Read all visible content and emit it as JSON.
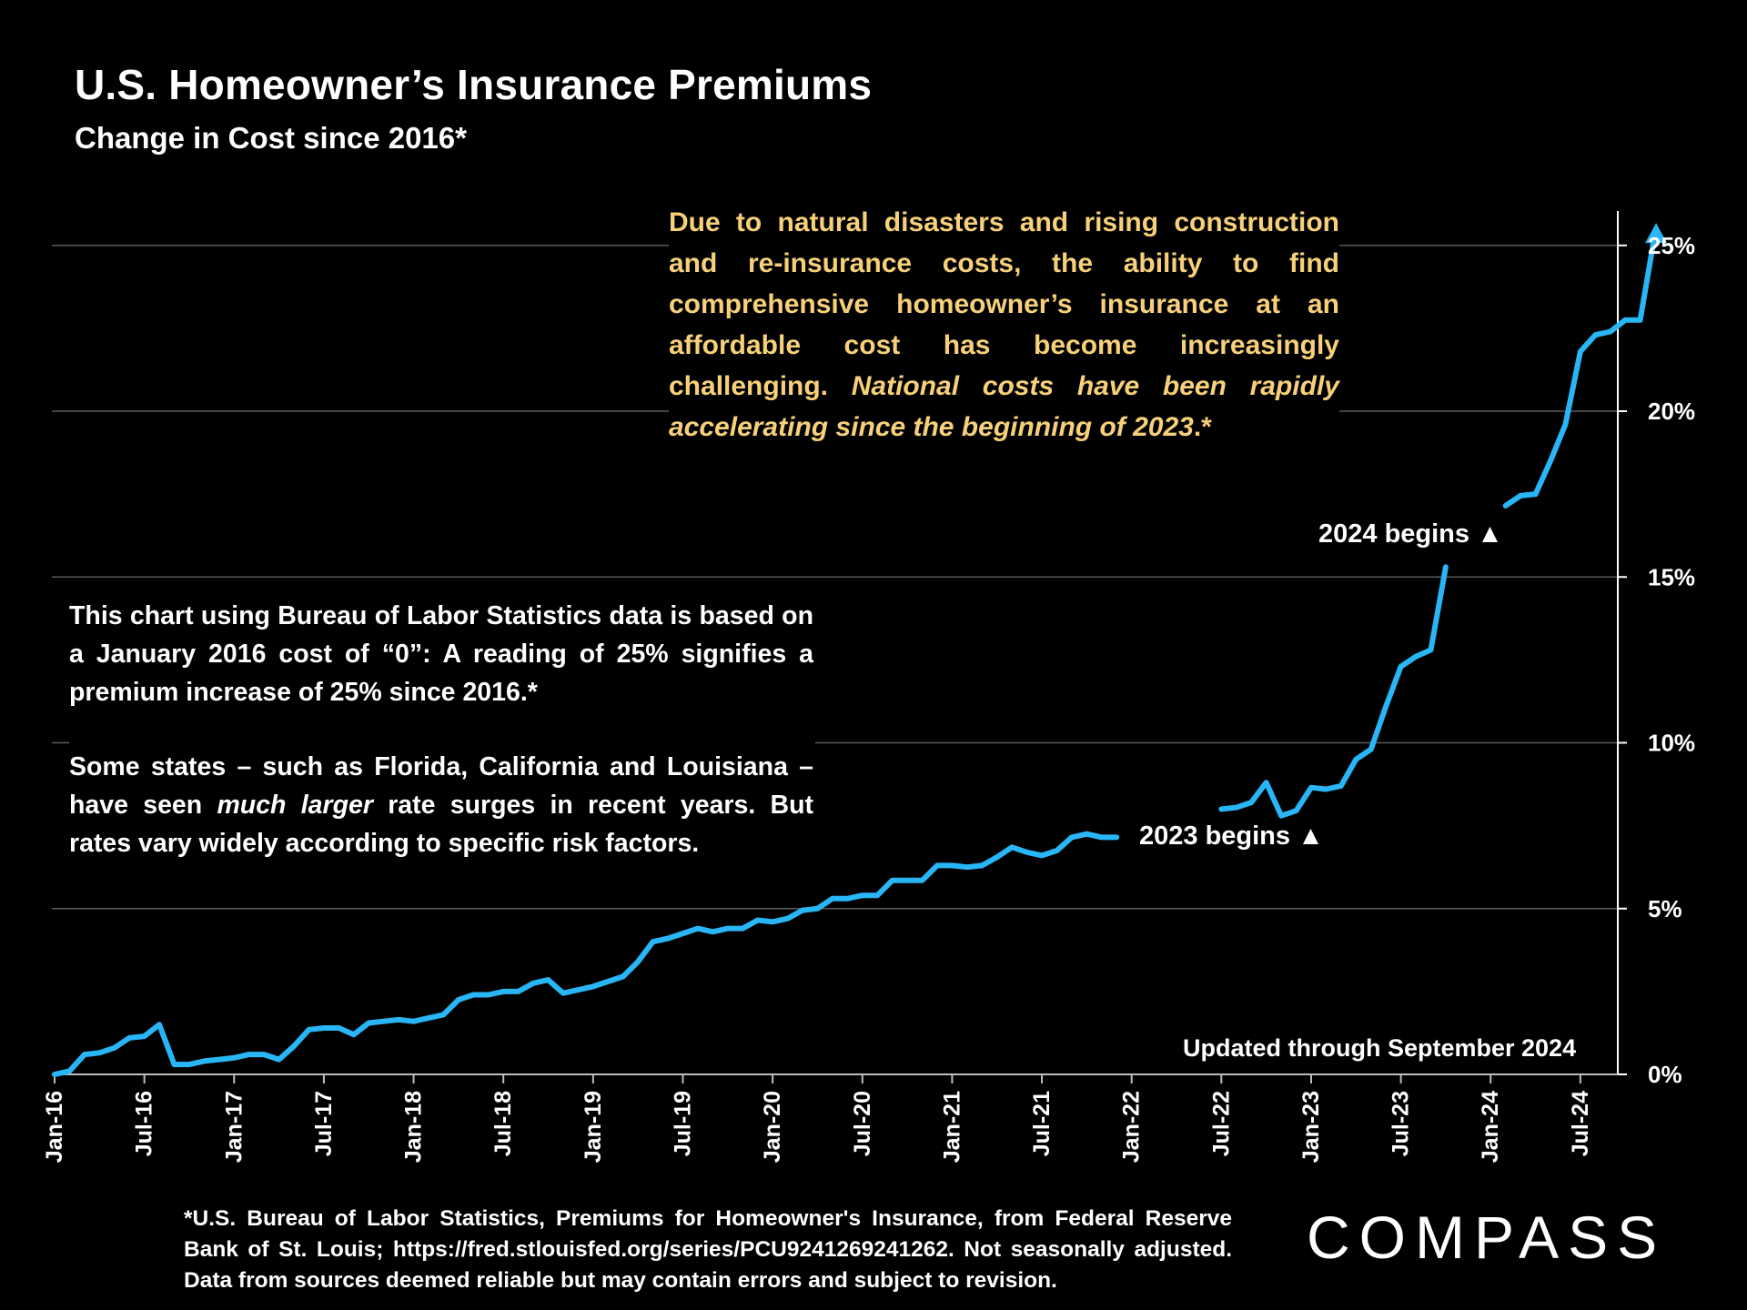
{
  "header": {
    "title": "U.S. Homeowner’s Insurance Premiums",
    "subtitle": "Change in Cost since 2016*"
  },
  "callout": {
    "plain": "Due to natural disasters and rising construction and re-insurance costs, the ability to find comprehensive homeowner’s insurance at an affordable cost has become increasingly challenging.",
    "italic": "National costs have been rapidly accelerating since the beginning of 2023",
    "suffix": ".*"
  },
  "note": {
    "para1": "This chart using Bureau of Labor Statistics data is based on a January 2016 cost of “0”:  A reading of 25% signifies a premium increase of 25% since 2016.*",
    "para2_a": "Some states – such as Florida, California and Louisiana – have seen ",
    "para2_italic": "much larger",
    "para2_b": " rate surges in recent years. But rates vary widely according to specific risk factors."
  },
  "annotations": {
    "begins_2023": "2023 begins ▲",
    "begins_2024": "2024 begins ▲",
    "updated": "Updated through September 2024"
  },
  "footnote": "*U.S. Bureau of Labor Statistics, Premiums for Homeowner's Insurance, from Federal Reserve Bank of St. Louis; https://fred.stlouisfed.org/series/PCU9241269241262. Not seasonally adjusted. Data from sources deemed reliable but may contain errors and subject to revision.",
  "logo": "COMPASS",
  "colors": {
    "line": "#29b6f6",
    "callout_text": "#f7d07a",
    "background": "#000000"
  },
  "chart_data": {
    "type": "line",
    "title": "U.S. Homeowner’s Insurance Premiums",
    "subtitle": "Change in Cost since 2016*",
    "xlabel": "",
    "ylabel": "",
    "y_axis_side": "right",
    "ylim": [
      0,
      26
    ],
    "yticks": [
      0,
      5,
      10,
      15,
      20,
      25
    ],
    "ytick_labels": [
      "0%",
      "5%",
      "10%",
      "15%",
      "20%",
      "25%"
    ],
    "xtick_labels": [
      "Jan-16",
      "Jul-16",
      "Jan-17",
      "Jul-17",
      "Jan-18",
      "Jul-18",
      "Jan-19",
      "Jul-19",
      "Jan-20",
      "Jul-20",
      "Jan-21",
      "Jul-21",
      "Jan-22",
      "Jul-22",
      "Jan-23",
      "Jul-23",
      "Jan-24",
      "Jul-24"
    ],
    "xtick_month_index": [
      0,
      6,
      12,
      18,
      24,
      30,
      36,
      42,
      48,
      54,
      60,
      66,
      72,
      78,
      84,
      90,
      96,
      102
    ],
    "grid": true,
    "series": [
      {
        "name": "Premium change since Jan 2016 (%)",
        "start": "Jan-16",
        "end": "Sep-24",
        "values": [
          0.0,
          0.1,
          0.6,
          0.65,
          0.8,
          1.1,
          1.15,
          1.5,
          0.3,
          0.3,
          0.4,
          0.45,
          0.5,
          0.6,
          0.6,
          0.45,
          0.85,
          1.35,
          1.4,
          1.4,
          1.2,
          1.55,
          1.6,
          1.65,
          1.6,
          1.7,
          1.8,
          2.25,
          2.4,
          2.4,
          2.5,
          2.5,
          2.75,
          2.85,
          2.45,
          2.55,
          2.65,
          2.8,
          2.95,
          3.4,
          4.0,
          4.1,
          4.25,
          4.4,
          4.3,
          4.4,
          4.4,
          4.65,
          4.6,
          4.7,
          4.95,
          5.0,
          5.3,
          5.3,
          5.4,
          5.4,
          5.85,
          5.85,
          5.85,
          6.3,
          6.3,
          6.25,
          6.3,
          6.55,
          6.85,
          6.7,
          6.6,
          6.75,
          7.15,
          7.25,
          7.15,
          7.15,
          null,
          null,
          null,
          null,
          null,
          null,
          8.0,
          8.05,
          8.2,
          8.8,
          7.8,
          7.95,
          8.65,
          8.6,
          8.7,
          9.5,
          9.8,
          11.1,
          12.3,
          12.6,
          12.8,
          15.3,
          null,
          null,
          null,
          17.15,
          17.45,
          17.5,
          18.5,
          19.6,
          21.8,
          22.3,
          22.4,
          22.75,
          22.75,
          25.4
        ]
      }
    ],
    "annotations": [
      "2023 begins ▲",
      "2024 begins ▲",
      "Updated through September 2024"
    ]
  }
}
